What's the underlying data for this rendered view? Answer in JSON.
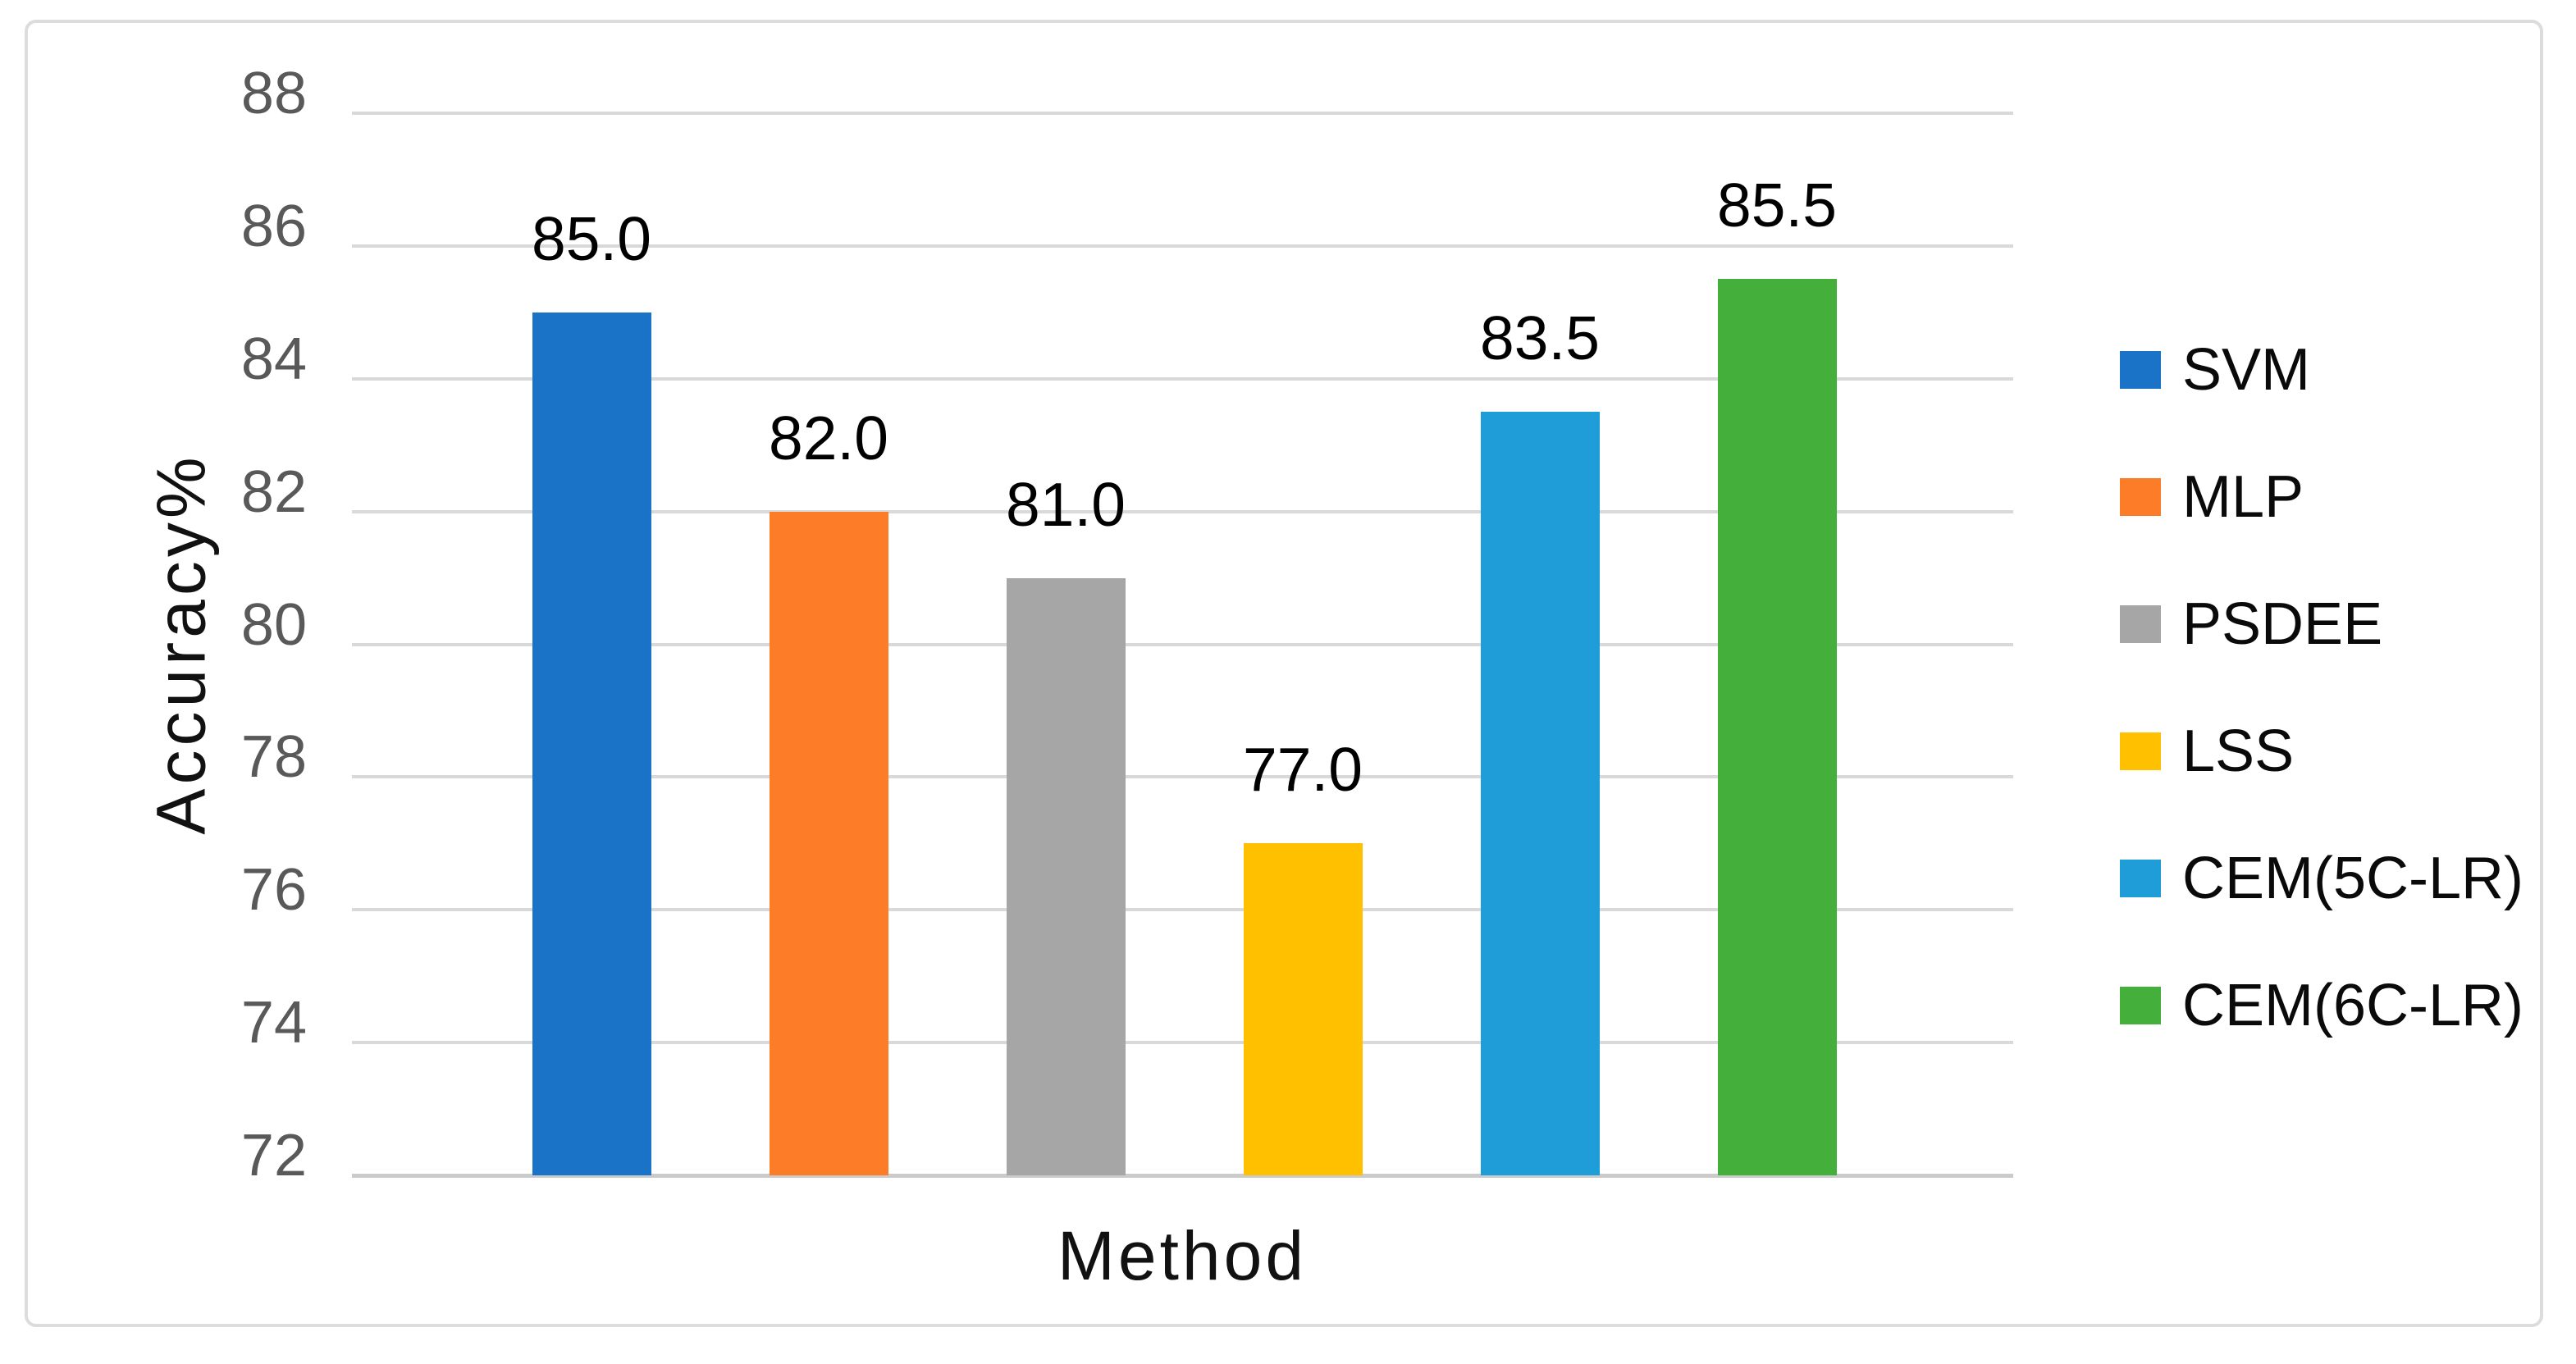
{
  "chart_data": {
    "type": "bar",
    "categories": [
      "SVM",
      "MLP",
      "PSDEE",
      "LSS",
      "CEM(5C-LR)",
      "CEM(6C-LR)"
    ],
    "values": [
      85.0,
      82.0,
      81.0,
      77.0,
      83.5,
      85.5
    ],
    "value_labels": [
      "85.0",
      "82.0",
      "81.0",
      "77.0",
      "83.5",
      "85.5"
    ],
    "series_colors": [
      "#1B73C8",
      "#FD7C28",
      "#A6A6A6",
      "#FFC000",
      "#1F9DD9",
      "#44AF3B"
    ],
    "title": "",
    "xlabel": "Method",
    "ylabel": "Accuracy%",
    "ylim": [
      72,
      88
    ],
    "yticks": [
      72,
      74,
      76,
      78,
      80,
      82,
      84,
      86,
      88
    ],
    "grid": true,
    "legend_position": "right",
    "legend": [
      {
        "label": "SVM",
        "color": "#1B73C8"
      },
      {
        "label": "MLP",
        "color": "#FD7C28"
      },
      {
        "label": "PSDEE",
        "color": "#A6A6A6"
      },
      {
        "label": "LSS",
        "color": "#FFC000"
      },
      {
        "label": "CEM(5C-LR)",
        "color": "#1F9DD9"
      },
      {
        "label": "CEM(6C-LR)",
        "color": "#44AF3B"
      }
    ]
  },
  "colors": {
    "background": "#FFFFFF",
    "frame_border": "#DCDCDC",
    "gridline": "#D9D9D9",
    "axis_line": "#CBCBCB",
    "tick_label": "#595959",
    "data_label": "#000000",
    "axis_title": "#111111",
    "legend_text": "#0A0A0A"
  }
}
